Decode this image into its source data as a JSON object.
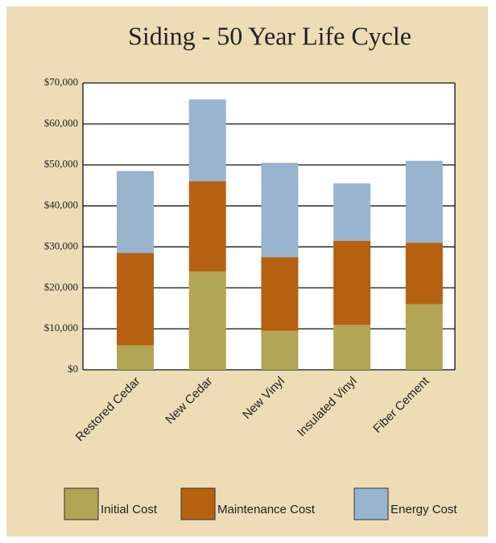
{
  "chart_data": {
    "type": "stacked_bar",
    "title": "Siding - 50 Year Life Cycle",
    "categories": [
      "Restored Cedar",
      "New Cedar",
      "New Vinyl",
      "Insulated Vinyl",
      "Fiber Cement"
    ],
    "series": [
      {
        "name": "Initial Cost",
        "color": "#b2a555",
        "values": [
          6000,
          24000,
          9500,
          11000,
          16000
        ]
      },
      {
        "name": "Maintenance Cost",
        "color": "#b5610f",
        "values": [
          22500,
          22000,
          18000,
          20500,
          15000
        ]
      },
      {
        "name": "Energy Cost",
        "color": "#98b4cf",
        "values": [
          20000,
          20000,
          23000,
          14000,
          20000
        ]
      }
    ],
    "ylim": [
      0,
      70000
    ],
    "yticks": [
      {
        "value": 0,
        "label": "$0"
      },
      {
        "value": 10000,
        "label": "$10,000"
      },
      {
        "value": 20000,
        "label": "$20,000"
      },
      {
        "value": 30000,
        "label": "$30,000"
      },
      {
        "value": 40000,
        "label": "$40,000"
      },
      {
        "value": 50000,
        "label": "$50,000"
      },
      {
        "value": 60000,
        "label": "$60,000"
      },
      {
        "value": 70000,
        "label": "$70,000"
      }
    ],
    "grid": true,
    "legend": "bottom"
  }
}
